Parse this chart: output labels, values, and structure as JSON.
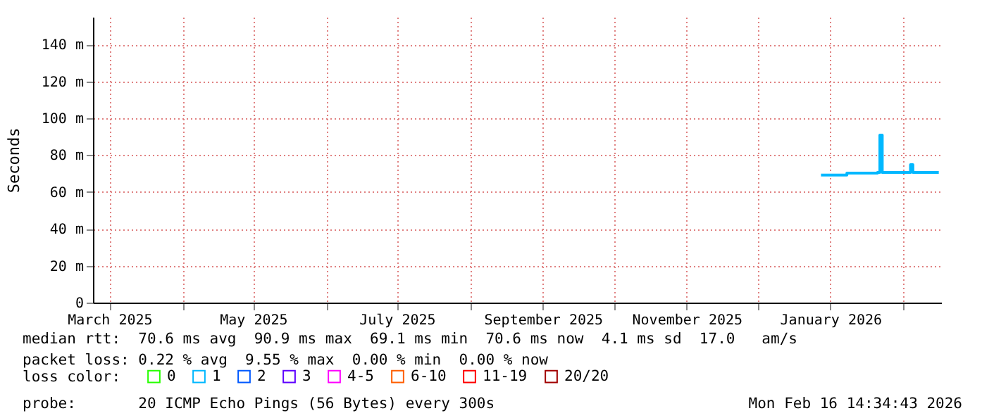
{
  "chart_data": {
    "type": "line",
    "ylabel": "Seconds",
    "x": [
      "2025-12-28",
      "2026-01-06",
      "2026-01-08",
      "2026-01-21",
      "2026-01-22",
      "2026-01-23",
      "2026-02-03",
      "2026-02-04",
      "2026-02-05",
      "2026-02-16"
    ],
    "series": [
      {
        "name": "0",
        "color": "#26ff00",
        "values": [
          null,
          null,
          null,
          null,
          null,
          null,
          null,
          null,
          null,
          null
        ]
      },
      {
        "name": "1",
        "color": "#00b8ff",
        "values": [
          69.2,
          69.2,
          70.2,
          70.6,
          90.9,
          70.6,
          70.6,
          74.8,
          70.6,
          70.6
        ]
      },
      {
        "name": "2",
        "color": "#0059ff",
        "values": [
          null,
          null,
          null,
          null,
          null,
          null,
          null,
          null,
          null,
          null
        ]
      },
      {
        "name": "3",
        "color": "#5e00ff",
        "values": [
          null,
          null,
          null,
          null,
          null,
          null,
          null,
          null,
          null,
          null
        ]
      },
      {
        "name": "4-5",
        "color": "#ff00ff",
        "values": [
          null,
          null,
          null,
          null,
          null,
          null,
          null,
          null,
          null,
          null
        ]
      },
      {
        "name": "6-10",
        "color": "#ff5e00",
        "values": [
          null,
          null,
          null,
          null,
          null,
          null,
          null,
          null,
          null,
          null
        ]
      },
      {
        "name": "11-19",
        "color": "#ff0000",
        "values": [
          null,
          null,
          null,
          null,
          null,
          null,
          null,
          null,
          null,
          null
        ]
      },
      {
        "name": "20/20",
        "color": "#a10000",
        "values": [
          null,
          null,
          null,
          null,
          null,
          null,
          null,
          null,
          null,
          null
        ]
      }
    ],
    "legend_title": "loss color:",
    "legend": "bottom",
    "xlim": [
      "2025-02-22",
      "2026-02-17"
    ],
    "xticks": [
      {
        "value": "2025-03-01",
        "label": "March 2025"
      },
      {
        "value": "2025-04-01",
        "label": null
      },
      {
        "value": "2025-05-01",
        "label": "May 2025"
      },
      {
        "value": "2025-06-01",
        "label": null
      },
      {
        "value": "2025-07-01",
        "label": "July 2025"
      },
      {
        "value": "2025-08-01",
        "label": null
      },
      {
        "value": "2025-09-01",
        "label": "September 2025"
      },
      {
        "value": "2025-10-01",
        "label": null
      },
      {
        "value": "2025-11-01",
        "label": "November 2025"
      },
      {
        "value": "2025-12-01",
        "label": null
      },
      {
        "value": "2026-01-01",
        "label": "January 2026"
      },
      {
        "value": "2026-02-01",
        "label": null
      }
    ],
    "ylim": [
      0,
      155
    ],
    "yticks": [
      0,
      {
        "value": 20,
        "label": "20 m"
      },
      {
        "value": 40,
        "label": "40 m"
      },
      {
        "value": 60,
        "label": "60 m"
      },
      {
        "value": 80,
        "label": "80 m"
      },
      {
        "value": 100,
        "label": "100 m"
      },
      {
        "value": 120,
        "label": "120 m"
      },
      {
        "value": 140,
        "label": "140 m"
      }
    ],
    "grid": true,
    "annotations": [
      "median rtt:  70.6 ms avg  90.9 ms max  69.1 ms min  70.6 ms now  4.1 ms sd  17.0   am/s",
      "packet loss: 0.22 % avg  9.55 % max  0.00 % min  0.00 % now",
      "probe:       20 ICMP Echo Pings (56 Bytes) every 300s",
      "Mon Feb 16 14:34:43 2026"
    ]
  }
}
